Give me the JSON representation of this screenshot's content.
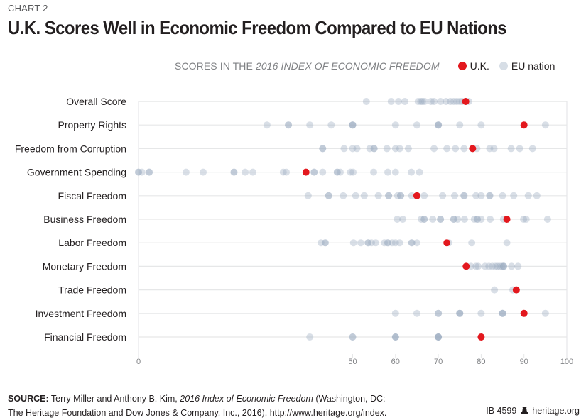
{
  "header": {
    "chart_label": "CHART 2",
    "title": "U.K. Scores Well in Economic Freedom Compared to EU Nations"
  },
  "legend": {
    "subtitle_prefix": "SCORES IN THE",
    "subtitle_italic": "2016 INDEX OF ECONOMIC FREEDOM",
    "uk_label": "U.K.",
    "eu_label": "EU nation",
    "uk_color": "#e3181e",
    "eu_color": "#9aabbf"
  },
  "footer": {
    "source_label": "SOURCE:",
    "source_text_1": "Terry Miller and Anthony B. Kim,",
    "source_italic": "2016 Index of Economic Freedom",
    "source_text_2": "(Washington, DC:",
    "source_line_2": "The Heritage Foundation and Dow Jones & Company, Inc., 2016), http://www.heritage.org/index.",
    "id_text": "IB 4599",
    "site": "heritage.org"
  },
  "chart_data": {
    "type": "scatter",
    "subtype": "dot-strip",
    "title": "U.K. Scores Well in Economic Freedom Compared to EU Nations",
    "subtitle": "SCORES IN THE 2016 INDEX OF ECONOMIC FREEDOM",
    "xlabel": "",
    "ylabel": "",
    "xlim": [
      0,
      100
    ],
    "x_ticks": [
      0,
      50,
      60,
      70,
      80,
      90,
      100
    ],
    "grid": true,
    "legend_position": "top-right",
    "series": [
      {
        "name": "U.K.",
        "color": "#e3181e"
      },
      {
        "name": "EU nation",
        "color": "#9aabbf"
      }
    ],
    "categories": [
      "Overall Score",
      "Property Rights",
      "Freedom from Corruption",
      "Government Spending",
      "Fiscal Freedom",
      "Business Freedom",
      "Labor Freedom",
      "Monetary Freedom",
      "Trade Freedom",
      "Investment Freedom",
      "Financial Freedom"
    ],
    "rows": [
      {
        "category": "Overall Score",
        "uk": 76.4,
        "eu": [
          53.2,
          59.0,
          60.7,
          62.2,
          65.3,
          65.9,
          66.3,
          66.8,
          68.3,
          69.0,
          70.5,
          71.8,
          72.8,
          73.6,
          74.3,
          75.0,
          75.6,
          77.1
        ]
      },
      {
        "category": "Property Rights",
        "uk": 90,
        "eu": [
          30,
          35,
          35,
          40,
          45,
          50,
          50,
          50,
          60,
          65,
          70,
          70,
          70,
          75,
          80,
          95
        ]
      },
      {
        "category": "Freedom from Corruption",
        "uk": 78,
        "eu": [
          43,
          43,
          48,
          50,
          51,
          54,
          55,
          55,
          58,
          60,
          61,
          63,
          69,
          72,
          74,
          76,
          79,
          82,
          83,
          87,
          89,
          92
        ]
      },
      {
        "category": "Government Spending",
        "uk": 39.1,
        "eu": [
          0,
          0,
          0.8,
          2.5,
          2.5,
          11.1,
          15.1,
          22.3,
          22.3,
          24.9,
          26.7,
          33.8,
          34.5,
          41.0,
          41.0,
          43.0,
          46.4,
          46.4,
          47.1,
          49.5,
          50.1,
          54.9,
          58.2,
          60.0,
          63.7,
          65.6
        ]
      },
      {
        "category": "Fiscal Freedom",
        "uk": 65.0,
        "eu": [
          39.6,
          44.4,
          44.4,
          47.8,
          50.7,
          52.7,
          56.0,
          58.4,
          58.4,
          60.5,
          61.2,
          61.2,
          63.8,
          66.7,
          71.0,
          73.8,
          76.0,
          76.0,
          78.8,
          80.0,
          82.0,
          82.0,
          85.0,
          87.6,
          91.0,
          93.0
        ]
      },
      {
        "category": "Business Freedom",
        "uk": 86.0,
        "eu": [
          60.4,
          61.7,
          66.0,
          66.7,
          66.7,
          68.7,
          70.5,
          70.5,
          73.6,
          73.6,
          74.5,
          76.1,
          78.4,
          79.1,
          79.1,
          80.0,
          82.1,
          85.2,
          89.9,
          90.5,
          95.5
        ]
      },
      {
        "category": "Labor Freedom",
        "uk": 72.0,
        "eu": [
          42.6,
          43.6,
          43.6,
          50.2,
          51.9,
          53.6,
          53.6,
          54.4,
          55.4,
          57.4,
          58.2,
          58.2,
          59.2,
          60.0,
          61.0,
          63.8,
          63.8,
          65.0,
          72.5,
          77.8,
          86.0
        ]
      },
      {
        "category": "Monetary Freedom",
        "uk": 76.5,
        "eu": [
          77.6,
          78.8,
          79.3,
          80.9,
          81.8,
          82.6,
          83.3,
          83.8,
          84.3,
          84.8,
          85.2,
          85.2,
          85.3,
          87.1,
          88.6
        ]
      },
      {
        "category": "Trade Freedom",
        "uk": 88.2,
        "eu": [
          83.1,
          87.4
        ]
      },
      {
        "category": "Investment Freedom",
        "uk": 90,
        "eu": [
          60,
          65,
          70,
          70,
          75,
          75,
          75,
          80,
          85,
          85,
          85,
          95
        ]
      },
      {
        "category": "Financial Freedom",
        "uk": 80,
        "eu": [
          40,
          50,
          50,
          60,
          60,
          60,
          70,
          70,
          70,
          70
        ]
      }
    ]
  }
}
